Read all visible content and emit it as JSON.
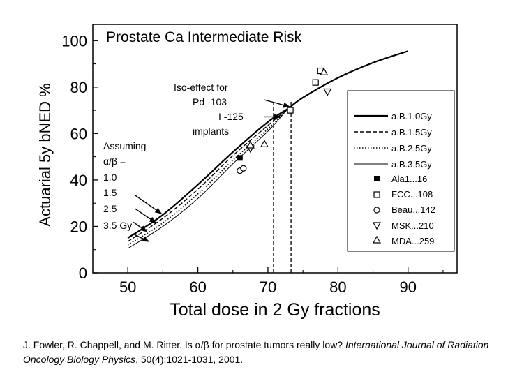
{
  "chart_data": {
    "type": "line",
    "title": "Prostate Ca Intermediate Risk",
    "xlabel": "Total dose in 2 Gy fractions",
    "ylabel": "Actuarial 5y bNED %",
    "xlim": [
      45,
      97
    ],
    "ylim": [
      0,
      107
    ],
    "xticks": [
      50,
      60,
      70,
      80,
      90
    ],
    "yticks": [
      0,
      20,
      40,
      60,
      80,
      100
    ],
    "grid": false,
    "legend_placement": "right",
    "series": [
      {
        "name": "a.B.1.0Gy",
        "style": "solid",
        "x": [
          50,
          55,
          60,
          65,
          70,
          73,
          75,
          80,
          85,
          90
        ],
        "y": [
          15.0,
          25.0,
          38.0,
          52.0,
          65.0,
          71.0,
          75.5,
          84.0,
          90.5,
          95.5
        ]
      },
      {
        "name": "a.B.1.5Gy",
        "style": "dashed",
        "x": [
          50,
          55,
          60,
          65,
          70,
          73,
          75,
          80,
          85,
          90
        ],
        "y": [
          13.5,
          23.5,
          36.0,
          50.5,
          63.5,
          71.0,
          75.5,
          84.0,
          90.5,
          95.5
        ]
      },
      {
        "name": "a.B.2.5Gy",
        "style": "dotted",
        "x": [
          50,
          55,
          60,
          65,
          70,
          73,
          75,
          80,
          85,
          90
        ],
        "y": [
          12.0,
          21.5,
          34.0,
          48.5,
          62.0,
          71.0,
          75.5,
          84.0,
          90.5,
          95.5
        ]
      },
      {
        "name": "a.B.3.5Gy",
        "style": "solid-thin",
        "x": [
          50,
          55,
          60,
          65,
          70,
          73,
          75,
          80,
          85,
          90
        ],
        "y": [
          10.5,
          20.0,
          32.0,
          47.0,
          61.0,
          71.0,
          75.5,
          84.0,
          90.5,
          95.5
        ]
      }
    ],
    "points": [
      {
        "name": "Ala1...16",
        "marker": "filled-square",
        "data": [
          [
            66,
            49.5
          ]
        ]
      },
      {
        "name": "FCC...108",
        "marker": "open-square",
        "data": [
          [
            73.2,
            70
          ],
          [
            76.8,
            82
          ],
          [
            77.5,
            87
          ]
        ]
      },
      {
        "name": "Beau...142",
        "marker": "open-circle",
        "data": [
          [
            66,
            44
          ],
          [
            66.5,
            45
          ]
        ]
      },
      {
        "name": "MSK...210",
        "marker": "down-triangle",
        "data": [
          [
            67.5,
            53.5
          ],
          [
            78.5,
            78
          ]
        ]
      },
      {
        "name": "MDA...259",
        "marker": "up-triangle",
        "data": [
          [
            67.5,
            55
          ],
          [
            69.5,
            55.5
          ],
          [
            78,
            86.5
          ]
        ]
      }
    ],
    "iso_effect_lines": [
      70.8,
      73.3
    ],
    "annotations": {
      "iso_effect": [
        "Iso-effect for",
        "Pd -103",
        "I -125",
        "implants"
      ],
      "assuming": [
        "Assuming",
        "α/β =",
        "1.0",
        "1.5",
        "2.5",
        "3.5 Gy"
      ]
    },
    "arrows": [
      {
        "from": [
          69.5,
          74.5
        ],
        "to": [
          73.1,
          71.5
        ]
      },
      {
        "from": [
          69.5,
          67.2
        ],
        "to": [
          71.8,
          67.2
        ]
      },
      {
        "from": [
          51.0,
          33.5
        ],
        "to": [
          54.8,
          25.5
        ]
      },
      {
        "from": [
          51.0,
          27.7
        ],
        "to": [
          54.0,
          21.6
        ]
      },
      {
        "from": [
          50.8,
          21.8
        ],
        "to": [
          52.7,
          17.8
        ]
      },
      {
        "from": [
          50.8,
          16.7
        ],
        "to": [
          53.0,
          13.5
        ]
      }
    ]
  },
  "citation": {
    "authors": "J. Fowler, R. Chappell, and M. Ritter. Is α/β for prostate tumors really low?",
    "journal": "International Journal of Radiation Oncology Biology Physics",
    "details": ", 50(4):1021-1031, 2001."
  }
}
